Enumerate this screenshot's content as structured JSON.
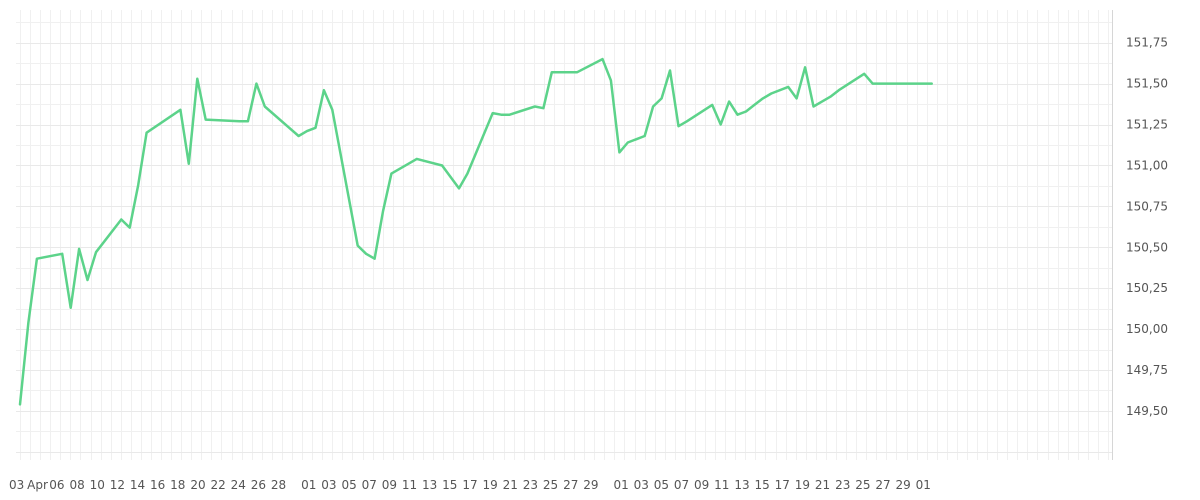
{
  "chart_data": {
    "type": "line",
    "title": "",
    "xlabel": "",
    "ylabel": "",
    "ylim": [
      149.2,
      151.95
    ],
    "grid": true,
    "legend": "none",
    "line_color": "#5cd38a",
    "y_ticks": [
      "149,50",
      "149,75",
      "150,00",
      "150,25",
      "150,50",
      "150,75",
      "151,00",
      "151,25",
      "151,50",
      "151,75"
    ],
    "y_tick_values": [
      149.5,
      149.75,
      150.0,
      150.25,
      150.5,
      150.75,
      151.0,
      151.25,
      151.5,
      151.75
    ],
    "x_tick_labels": [
      "03",
      "Apr",
      "06",
      "08",
      "10",
      "12",
      "14",
      "16",
      "18",
      "20",
      "22",
      "24",
      "26",
      "28",
      "01",
      "03",
      "05",
      "07",
      "09",
      "11",
      "13",
      "15",
      "17",
      "19",
      "21",
      "23",
      "25",
      "27",
      "29",
      "01",
      "03",
      "05",
      "07",
      "09",
      "11",
      "13",
      "15",
      "17",
      "19",
      "21",
      "23",
      "25",
      "27",
      "29",
      "01"
    ],
    "series": [
      {
        "x": [
          0,
          1,
          2,
          5,
          6,
          7,
          8,
          9,
          12,
          13,
          14,
          15,
          19,
          20,
          21,
          22,
          26,
          27,
          28,
          29,
          33,
          34,
          35,
          36,
          37,
          40,
          41,
          42,
          43,
          44,
          45,
          47,
          50,
          52,
          53,
          56,
          57,
          58,
          61,
          62,
          63,
          64,
          65,
          66,
          69,
          70,
          71,
          72,
          74,
          75,
          76,
          77,
          78,
          79,
          82,
          83,
          84,
          85,
          86,
          87,
          88,
          89,
          91,
          92,
          93,
          94,
          95,
          96,
          97,
          100,
          101,
          102,
          103,
          104,
          106,
          107,
          108
        ],
        "y": [
          149.54,
          150.04,
          150.43,
          150.46,
          150.13,
          150.49,
          150.3,
          150.47,
          150.67,
          150.62,
          150.88,
          151.2,
          151.34,
          151.01,
          151.53,
          151.28,
          151.27,
          151.27,
          151.5,
          151.36,
          151.18,
          151.21,
          151.23,
          151.46,
          151.34,
          150.51,
          150.46,
          150.43,
          150.72,
          150.95,
          150.98,
          151.04,
          151.0,
          150.86,
          150.95,
          151.32,
          151.31,
          151.31,
          151.36,
          151.35,
          151.57,
          151.57,
          151.57,
          151.57,
          151.65,
          151.52,
          151.08,
          151.14,
          151.18,
          151.36,
          151.41,
          151.58,
          151.24,
          151.27,
          151.37,
          151.25,
          151.39,
          151.31,
          151.33,
          151.37,
          151.41,
          151.44,
          151.48,
          151.41,
          151.6,
          151.36,
          151.39,
          151.42,
          151.46,
          151.56,
          151.5,
          151.5,
          151.5,
          151.5,
          151.5,
          151.5,
          151.5
        ]
      }
    ]
  }
}
